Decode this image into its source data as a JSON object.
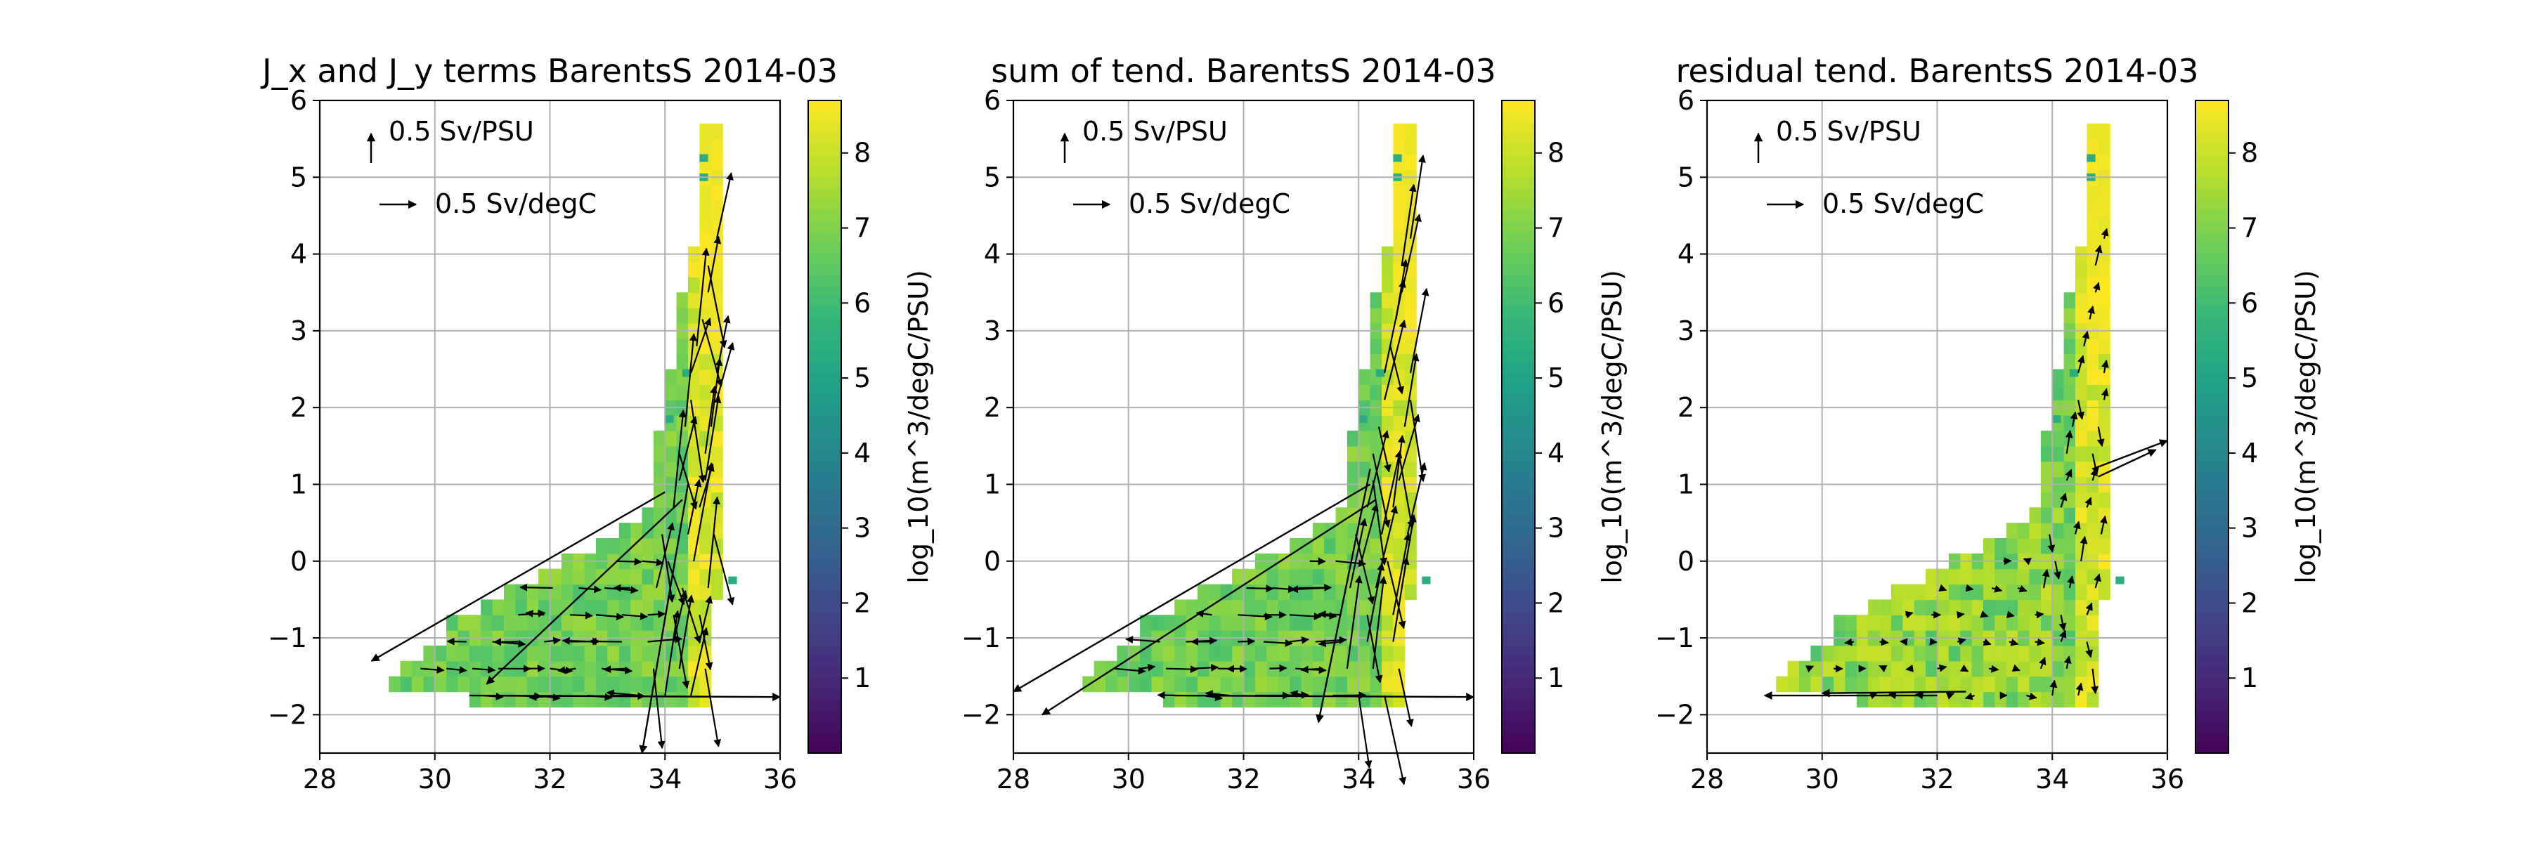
{
  "colormap": "viridis",
  "colormap_stops": [
    "#440154",
    "#482878",
    "#3e4989",
    "#31688e",
    "#26828e",
    "#1f9e89",
    "#35b779",
    "#6ece58",
    "#b5de2b",
    "#fde725"
  ],
  "chart_data": [
    {
      "type": "heatmap",
      "subtype": "2D histogram with quiver overlay",
      "title": "J_x and J_y terms BarentsS 2014-03",
      "xlim": [
        28,
        36
      ],
      "ylim": [
        -2.5,
        6
      ],
      "xticks": [
        28,
        30,
        32,
        34,
        36
      ],
      "yticks": [
        -2,
        -1,
        0,
        1,
        2,
        3,
        4,
        5,
        6
      ],
      "grid": true,
      "colorbar": {
        "label": "log_10(m^3/degC/PSU)",
        "range": [
          0,
          8.7
        ],
        "ticks": [
          1,
          2,
          3,
          4,
          5,
          6,
          7,
          8
        ]
      },
      "quiver_keys": [
        {
          "label": "0.5 Sv/PSU",
          "direction": "up"
        },
        {
          "label": "0.5 Sv/degC",
          "direction": "right"
        }
      ],
      "notable_arrows": [
        {
          "x": 34.0,
          "y": 0.9,
          "x_end": 28.9,
          "y_end": -1.3
        },
        {
          "x": 34.3,
          "y": 0.8,
          "x_end": 30.9,
          "y_end": -1.6
        },
        {
          "x": 34.4,
          "y": 1.0,
          "x_end": 33.6,
          "y_end": -2.5
        },
        {
          "x": 30.6,
          "y": -1.75,
          "x_end": 36.0,
          "y_end": -1.77
        }
      ]
    },
    {
      "type": "heatmap",
      "subtype": "2D histogram with quiver overlay",
      "title": "sum of tend. BarentsS 2014-03",
      "xlim": [
        28,
        36
      ],
      "ylim": [
        -2.5,
        6
      ],
      "xticks": [
        28,
        30,
        32,
        34,
        36
      ],
      "yticks": [
        -2,
        -1,
        0,
        1,
        2,
        3,
        4,
        5,
        6
      ],
      "grid": true,
      "colorbar": {
        "label": "log_10(m^3/degC/PSU)",
        "range": [
          0,
          8.7
        ],
        "ticks": [
          1,
          2,
          3,
          4,
          5,
          6,
          7,
          8
        ]
      },
      "quiver_keys": [
        {
          "label": "0.5 Sv/PSU",
          "direction": "up"
        },
        {
          "label": "0.5 Sv/degC",
          "direction": "right"
        }
      ],
      "notable_arrows": [
        {
          "x": 34.2,
          "y": 1.0,
          "x_end": 28.0,
          "y_end": -1.7
        },
        {
          "x": 34.3,
          "y": 0.8,
          "x_end": 28.5,
          "y_end": -2.0
        },
        {
          "x": 30.8,
          "y": -1.75,
          "x_end": 36.0,
          "y_end": -1.77
        },
        {
          "x": 34.2,
          "y": 1.2,
          "x_end": 33.3,
          "y_end": -2.1
        }
      ]
    },
    {
      "type": "heatmap",
      "subtype": "2D histogram with quiver overlay",
      "title": "residual tend. BarentsS 2014-03",
      "xlim": [
        28,
        36
      ],
      "ylim": [
        -2.5,
        6
      ],
      "xticks": [
        28,
        30,
        32,
        34,
        36
      ],
      "yticks": [
        -2,
        -1,
        0,
        1,
        2,
        3,
        4,
        5,
        6
      ],
      "grid": true,
      "colorbar": {
        "label": "log_10(m^3/degC/PSU)",
        "range": [
          0,
          8.7
        ],
        "ticks": [
          1,
          2,
          3,
          4,
          5,
          6,
          7,
          8
        ]
      },
      "quiver_keys": [
        {
          "label": "0.5 Sv/PSU",
          "direction": "up"
        },
        {
          "label": "0.5 Sv/degC",
          "direction": "right"
        }
      ],
      "notable_arrows": [
        {
          "x": 34.7,
          "y": 1.2,
          "x_end": 36.0,
          "y_end": 1.57
        },
        {
          "x": 34.8,
          "y": 1.1,
          "x_end": 35.8,
          "y_end": 1.45
        },
        {
          "x": 32.0,
          "y": -1.75,
          "x_end": 29.0,
          "y_end": -1.75
        },
        {
          "x": 32.5,
          "y": -1.7,
          "x_end": 30.0,
          "y_end": -1.72
        }
      ]
    }
  ]
}
